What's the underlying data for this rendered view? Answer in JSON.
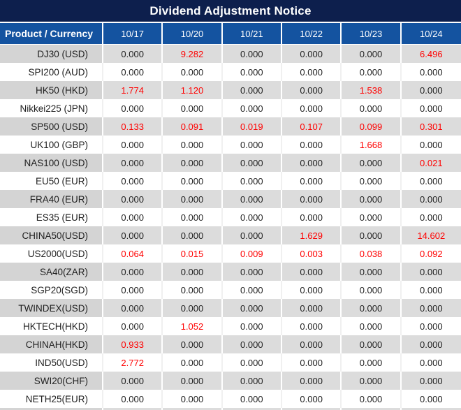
{
  "title": "Dividend Adjustment Notice",
  "colors": {
    "title_bar_bg": "#0d1f4d",
    "header_bg": "#1453a0",
    "header_text": "#ffffff",
    "stripe_product_bg": "#d4d4d4",
    "stripe_value_bg": "#dcdcdc",
    "plain_row_bg": "#ffffff",
    "value_text": "#1f1f1f",
    "nonzero_value_text": "#ff0000"
  },
  "table": {
    "header": {
      "product_column_label": "Product / Currency",
      "date_columns": [
        "10/17",
        "10/20",
        "10/21",
        "10/22",
        "10/23",
        "10/24"
      ]
    },
    "rows": [
      {
        "product": "DJ30 (USD)",
        "values": [
          "0.000",
          "9.282",
          "0.000",
          "0.000",
          "0.000",
          "6.496"
        ]
      },
      {
        "product": "SPI200 (AUD)",
        "values": [
          "0.000",
          "0.000",
          "0.000",
          "0.000",
          "0.000",
          "0.000"
        ]
      },
      {
        "product": "HK50 (HKD)",
        "values": [
          "1.774",
          "1.120",
          "0.000",
          "0.000",
          "1.538",
          "0.000"
        ]
      },
      {
        "product": "Nikkei225 (JPN)",
        "values": [
          "0.000",
          "0.000",
          "0.000",
          "0.000",
          "0.000",
          "0.000"
        ]
      },
      {
        "product": "SP500 (USD)",
        "values": [
          "0.133",
          "0.091",
          "0.019",
          "0.107",
          "0.099",
          "0.301"
        ]
      },
      {
        "product": "UK100 (GBP)",
        "values": [
          "0.000",
          "0.000",
          "0.000",
          "0.000",
          "1.668",
          "0.000"
        ]
      },
      {
        "product": "NAS100 (USD)",
        "values": [
          "0.000",
          "0.000",
          "0.000",
          "0.000",
          "0.000",
          "0.021"
        ]
      },
      {
        "product": "EU50 (EUR)",
        "values": [
          "0.000",
          "0.000",
          "0.000",
          "0.000",
          "0.000",
          "0.000"
        ]
      },
      {
        "product": "FRA40 (EUR)",
        "values": [
          "0.000",
          "0.000",
          "0.000",
          "0.000",
          "0.000",
          "0.000"
        ]
      },
      {
        "product": "ES35 (EUR)",
        "values": [
          "0.000",
          "0.000",
          "0.000",
          "0.000",
          "0.000",
          "0.000"
        ]
      },
      {
        "product": "CHINA50(USD)",
        "values": [
          "0.000",
          "0.000",
          "0.000",
          "1.629",
          "0.000",
          "14.602"
        ]
      },
      {
        "product": "US2000(USD)",
        "values": [
          "0.064",
          "0.015",
          "0.009",
          "0.003",
          "0.038",
          "0.092"
        ]
      },
      {
        "product": "SA40(ZAR)",
        "values": [
          "0.000",
          "0.000",
          "0.000",
          "0.000",
          "0.000",
          "0.000"
        ]
      },
      {
        "product": "SGP20(SGD)",
        "values": [
          "0.000",
          "0.000",
          "0.000",
          "0.000",
          "0.000",
          "0.000"
        ]
      },
      {
        "product": "TWINDEX(USD)",
        "values": [
          "0.000",
          "0.000",
          "0.000",
          "0.000",
          "0.000",
          "0.000"
        ]
      },
      {
        "product": "HKTECH(HKD)",
        "values": [
          "0.000",
          "1.052",
          "0.000",
          "0.000",
          "0.000",
          "0.000"
        ]
      },
      {
        "product": "CHINAH(HKD)",
        "values": [
          "0.933",
          "0.000",
          "0.000",
          "0.000",
          "0.000",
          "0.000"
        ]
      },
      {
        "product": "IND50(USD)",
        "values": [
          "2.772",
          "0.000",
          "0.000",
          "0.000",
          "0.000",
          "0.000"
        ]
      },
      {
        "product": "SWI20(CHF)",
        "values": [
          "0.000",
          "0.000",
          "0.000",
          "0.000",
          "0.000",
          "0.000"
        ]
      },
      {
        "product": "NETH25(EUR)",
        "values": [
          "0.000",
          "0.000",
          "0.000",
          "0.000",
          "0.000",
          "0.000"
        ]
      }
    ]
  }
}
